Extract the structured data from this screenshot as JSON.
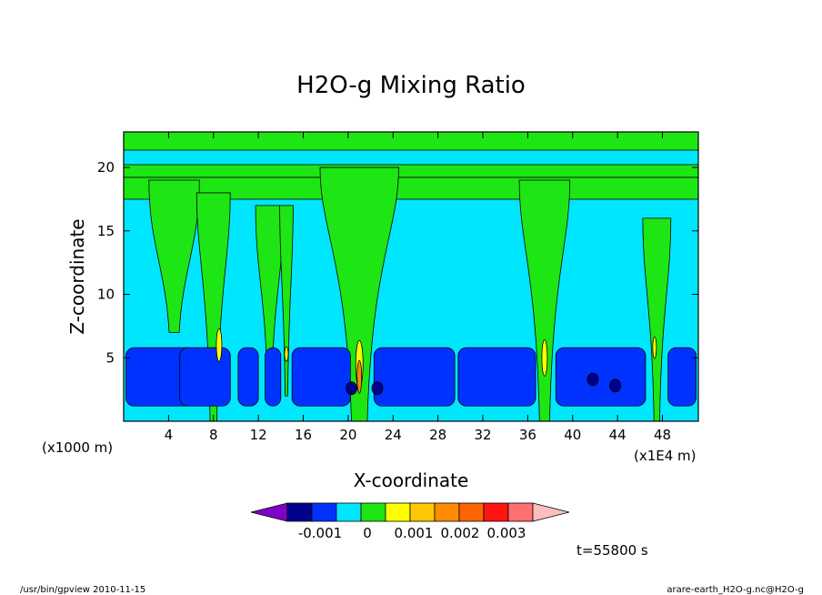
{
  "chart_data": {
    "type": "heatmap",
    "title": "H2O-g Mixing Ratio",
    "xlabel": "X-coordinate",
    "ylabel": "Z-coordinate",
    "x_unit_left": "(x1000 m)",
    "x_unit_right": "(x1E4 m)",
    "x_ticks": [
      4,
      8,
      12,
      16,
      20,
      24,
      28,
      32,
      36,
      40,
      44,
      48
    ],
    "y_ticks": [
      5,
      10,
      15,
      20
    ],
    "xlim": [
      0,
      51.2
    ],
    "ylim": [
      0,
      22.8
    ],
    "colorbar": {
      "colors": [
        "#7f00c8",
        "#00008c",
        "#0032ff",
        "#00e6ff",
        "#1ee614",
        "#ffff00",
        "#ffc800",
        "#ff8c00",
        "#ff6400",
        "#ff1414",
        "#ff7070",
        "#ffbebe"
      ],
      "labels": [
        "-0.001",
        "0",
        "0.001",
        "0.002",
        "0.003"
      ]
    },
    "time_label": "t=55800 s",
    "field_levels": {
      "background": "#00e6ff",
      "moist": "#1ee614",
      "dry": "#0032ff",
      "very_dry": "#00008c",
      "peak": "#ffff00",
      "peak_high": "#ff8c00"
    }
  },
  "footer": {
    "left": "/usr/bin/gpview   2010-11-15",
    "right": "arare-earth_H2O-g.nc@H2O-g"
  }
}
